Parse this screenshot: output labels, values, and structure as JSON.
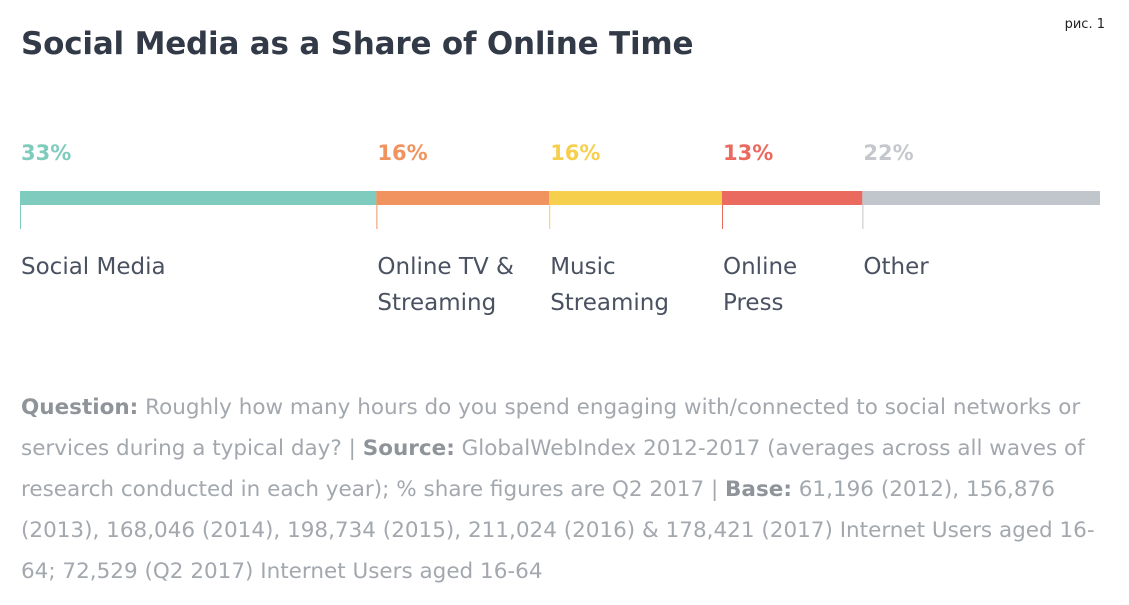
{
  "figure_label": "рис. 1",
  "chart_data": {
    "type": "bar",
    "orientation": "horizontal-stacked",
    "title": "Social Media as a Share of Online Time",
    "unit": "%",
    "categories": [
      "Social Media",
      "Online TV & Streaming",
      "Music Streaming",
      "Online Press",
      "Other"
    ],
    "category_lines": [
      [
        "Social Media"
      ],
      [
        "Online TV &",
        "Streaming"
      ],
      [
        "Music",
        "Streaming"
      ],
      [
        "Online",
        "Press"
      ],
      [
        "Other"
      ]
    ],
    "values": [
      33,
      16,
      16,
      13,
      22
    ],
    "value_labels": [
      "33%",
      "16%",
      "16%",
      "13%",
      "22%"
    ],
    "colors": [
      "#7fcbbd",
      "#f0935f",
      "#f6d04d",
      "#ea6a60",
      "#c0c6cc"
    ],
    "label_colors": [
      "#7fcbbd",
      "#f0935f",
      "#f6d04d",
      "#ea6a60",
      "#c4c8cc"
    ],
    "total": 100,
    "legend": "none",
    "grid": false
  },
  "footnote": {
    "question_label": "Question:",
    "question_text": " Roughly how many hours do you spend engaging with/connected to social networks or services during a typical day? | ",
    "source_label": "Source:",
    "source_text": " GlobalWebIndex 2012-2017 (averages across all waves of research conducted in each year); % share figures are Q2 2017 | ",
    "base_label": "Base:",
    "base_text": " 61,196 (2012), 156,876 (2013), 168,046 (2014), 198,734 (2015), 211,024 (2016) & 178,421 (2017) Internet Users aged 16-64; 72,529 (Q2 2017) Internet Users aged 16-64"
  }
}
